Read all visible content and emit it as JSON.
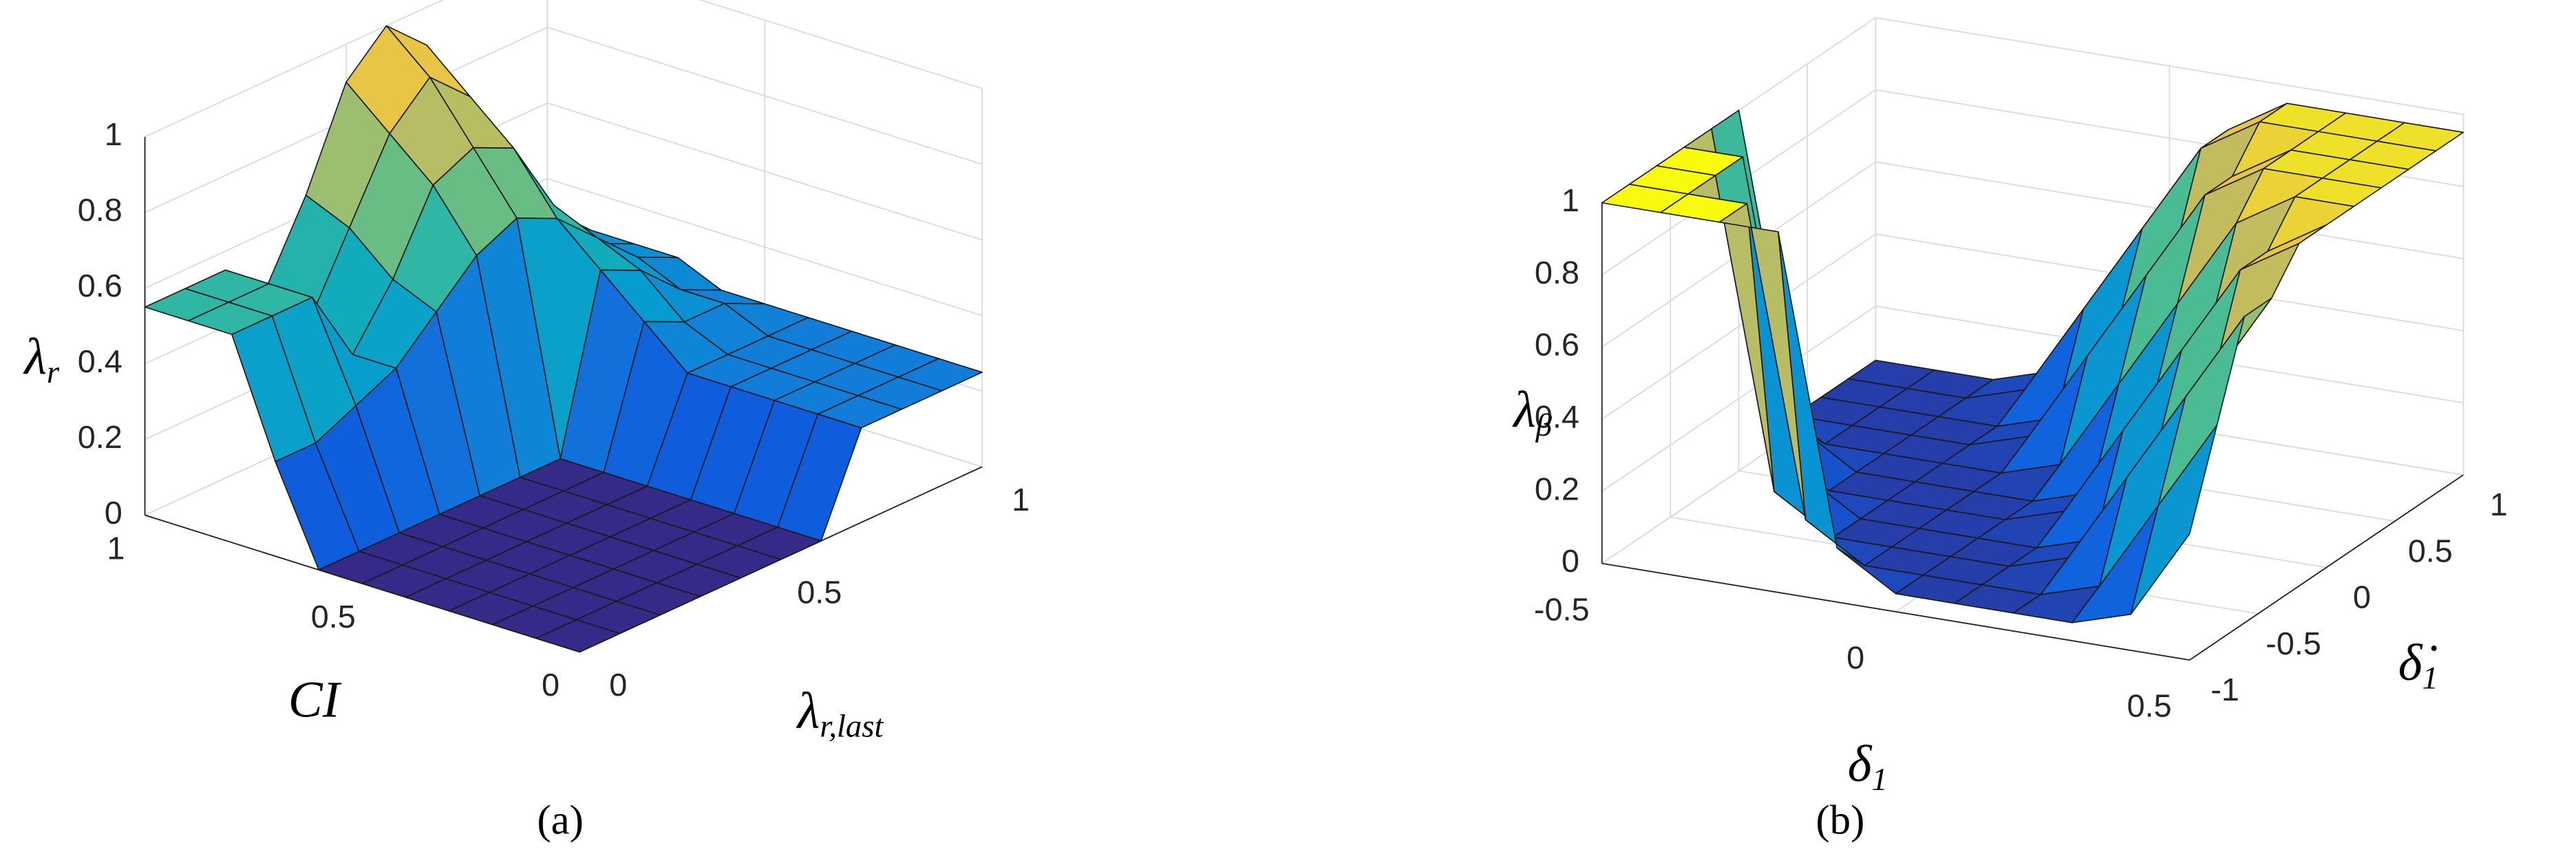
{
  "chart_data": [
    {
      "type": "surface",
      "caption": "(a)",
      "colormap": "parula",
      "grid": true,
      "xlabel": {
        "base": "CI"
      },
      "ylabel": {
        "base": "λ",
        "sub": "r,last"
      },
      "zlabel": {
        "base": "λ",
        "sub": "r"
      },
      "xlim": [
        0,
        1
      ],
      "ylim": [
        0,
        1
      ],
      "zlim": [
        0,
        1
      ],
      "xticks": [
        0,
        0.5,
        1
      ],
      "yticks": [
        0,
        0.5,
        1
      ],
      "zticks": [
        0,
        0.2,
        0.4,
        0.6,
        0.8,
        1
      ],
      "x": [
        0,
        0.1,
        0.2,
        0.3,
        0.4,
        0.5,
        0.6,
        0.7,
        0.8,
        0.9,
        1
      ],
      "y": [
        0,
        0.1,
        0.2,
        0.3,
        0.4,
        0.5,
        0.6,
        0.7,
        0.8,
        0.9,
        1
      ],
      "z": [
        [
          0,
          0,
          0,
          0,
          0,
          0,
          0,
          0.25,
          0.55,
          0.55,
          0.55
        ],
        [
          0,
          0,
          0,
          0,
          0,
          0,
          0,
          0.25,
          0.55,
          0.55,
          0.55
        ],
        [
          0,
          0,
          0,
          0,
          0,
          0,
          0,
          0.3,
          0.55,
          0.55,
          0.55
        ],
        [
          0,
          0,
          0,
          0,
          0,
          0,
          0,
          0.35,
          0.35,
          0.4,
          0.45
        ],
        [
          0,
          0,
          0,
          0,
          0,
          0,
          0,
          0.45,
          0.5,
          0.6,
          0.65
        ],
        [
          0,
          0,
          0,
          0,
          0,
          0,
          0,
          0.55,
          0.7,
          0.8,
          0.9
        ],
        [
          0,
          0,
          0,
          0,
          0,
          0,
          0,
          0.6,
          0.75,
          0.9,
          1
        ],
        [
          0.25,
          0.25,
          0.25,
          0.25,
          0.25,
          0.35,
          0.45,
          0.55,
          0.7,
          0.8,
          0.9
        ],
        [
          0.25,
          0.25,
          0.25,
          0.25,
          0.25,
          0.3,
          0.4,
          0.45,
          0.5,
          0.6,
          0.65
        ],
        [
          0.25,
          0.25,
          0.25,
          0.25,
          0.25,
          0.3,
          0.3,
          0.35,
          0.35,
          0.4,
          0.45
        ],
        [
          0.25,
          0.25,
          0.25,
          0.25,
          0.25,
          0.25,
          0.25,
          0.3,
          0.3,
          0.3,
          0.3
        ]
      ]
    },
    {
      "type": "surface",
      "caption": "(b)",
      "colormap": "parula",
      "grid": true,
      "xlabel": {
        "base": "δ",
        "sub": "1"
      },
      "ylabel": {
        "base": "δ̇",
        "sub": "1"
      },
      "zlabel": {
        "base": "λ",
        "sub": "β"
      },
      "xlim": [
        -0.5,
        0.5
      ],
      "ylim": [
        -1,
        1
      ],
      "zlim": [
        0,
        1
      ],
      "xticks": [
        -0.5,
        0,
        0.5
      ],
      "yticks": [
        -1,
        -0.5,
        0,
        0.5,
        1
      ],
      "zticks": [
        0,
        0.2,
        0.4,
        0.6,
        0.8,
        1
      ],
      "x": [
        -0.5,
        -0.4,
        -0.3,
        -0.2,
        -0.1,
        0,
        0.1,
        0.2,
        0.3,
        0.4,
        0.5
      ],
      "y": [
        -1,
        -0.8,
        -0.6,
        -0.4,
        -0.2,
        0,
        0.2,
        0.4,
        0.6,
        0.8,
        1
      ],
      "z": [
        [
          1,
          1,
          1,
          1,
          0.15,
          0.05,
          0.05,
          0.05,
          0.05,
          0.1,
          0.35
        ],
        [
          1,
          1,
          1,
          0.15,
          0.05,
          0.05,
          0.05,
          0.05,
          0.1,
          0.35,
          0.6
        ],
        [
          1,
          1,
          0.15,
          0.05,
          0.05,
          0.05,
          0.05,
          0.1,
          0.35,
          0.6,
          0.85
        ],
        [
          1,
          1,
          0.15,
          0.05,
          0.05,
          0.05,
          0.05,
          0.1,
          0.35,
          0.6,
          0.85
        ],
        [
          1,
          0.15,
          0.05,
          0.05,
          0.05,
          0.05,
          0.1,
          0.35,
          0.6,
          0.85,
          0.95
        ],
        [
          1,
          0.15,
          0.05,
          0.05,
          0.05,
          0.05,
          0.1,
          0.35,
          0.6,
          0.85,
          0.95
        ],
        [
          0.15,
          0.05,
          0.05,
          0.05,
          0.05,
          0.1,
          0.35,
          0.6,
          0.85,
          0.95,
          0.95
        ],
        [
          0.05,
          0.05,
          0.05,
          0.05,
          0.1,
          0.35,
          0.6,
          0.85,
          0.95,
          0.95,
          0.95
        ],
        [
          0.05,
          0.05,
          0.05,
          0.05,
          0.1,
          0.35,
          0.6,
          0.85,
          0.95,
          0.95,
          0.95
        ],
        [
          0.05,
          0.05,
          0.05,
          0.1,
          0.35,
          0.6,
          0.85,
          0.95,
          0.95,
          0.95,
          0.95
        ],
        [
          0.05,
          0.05,
          0.05,
          0.1,
          0.35,
          0.6,
          0.85,
          0.95,
          0.95,
          0.95,
          0.95
        ]
      ]
    }
  ]
}
